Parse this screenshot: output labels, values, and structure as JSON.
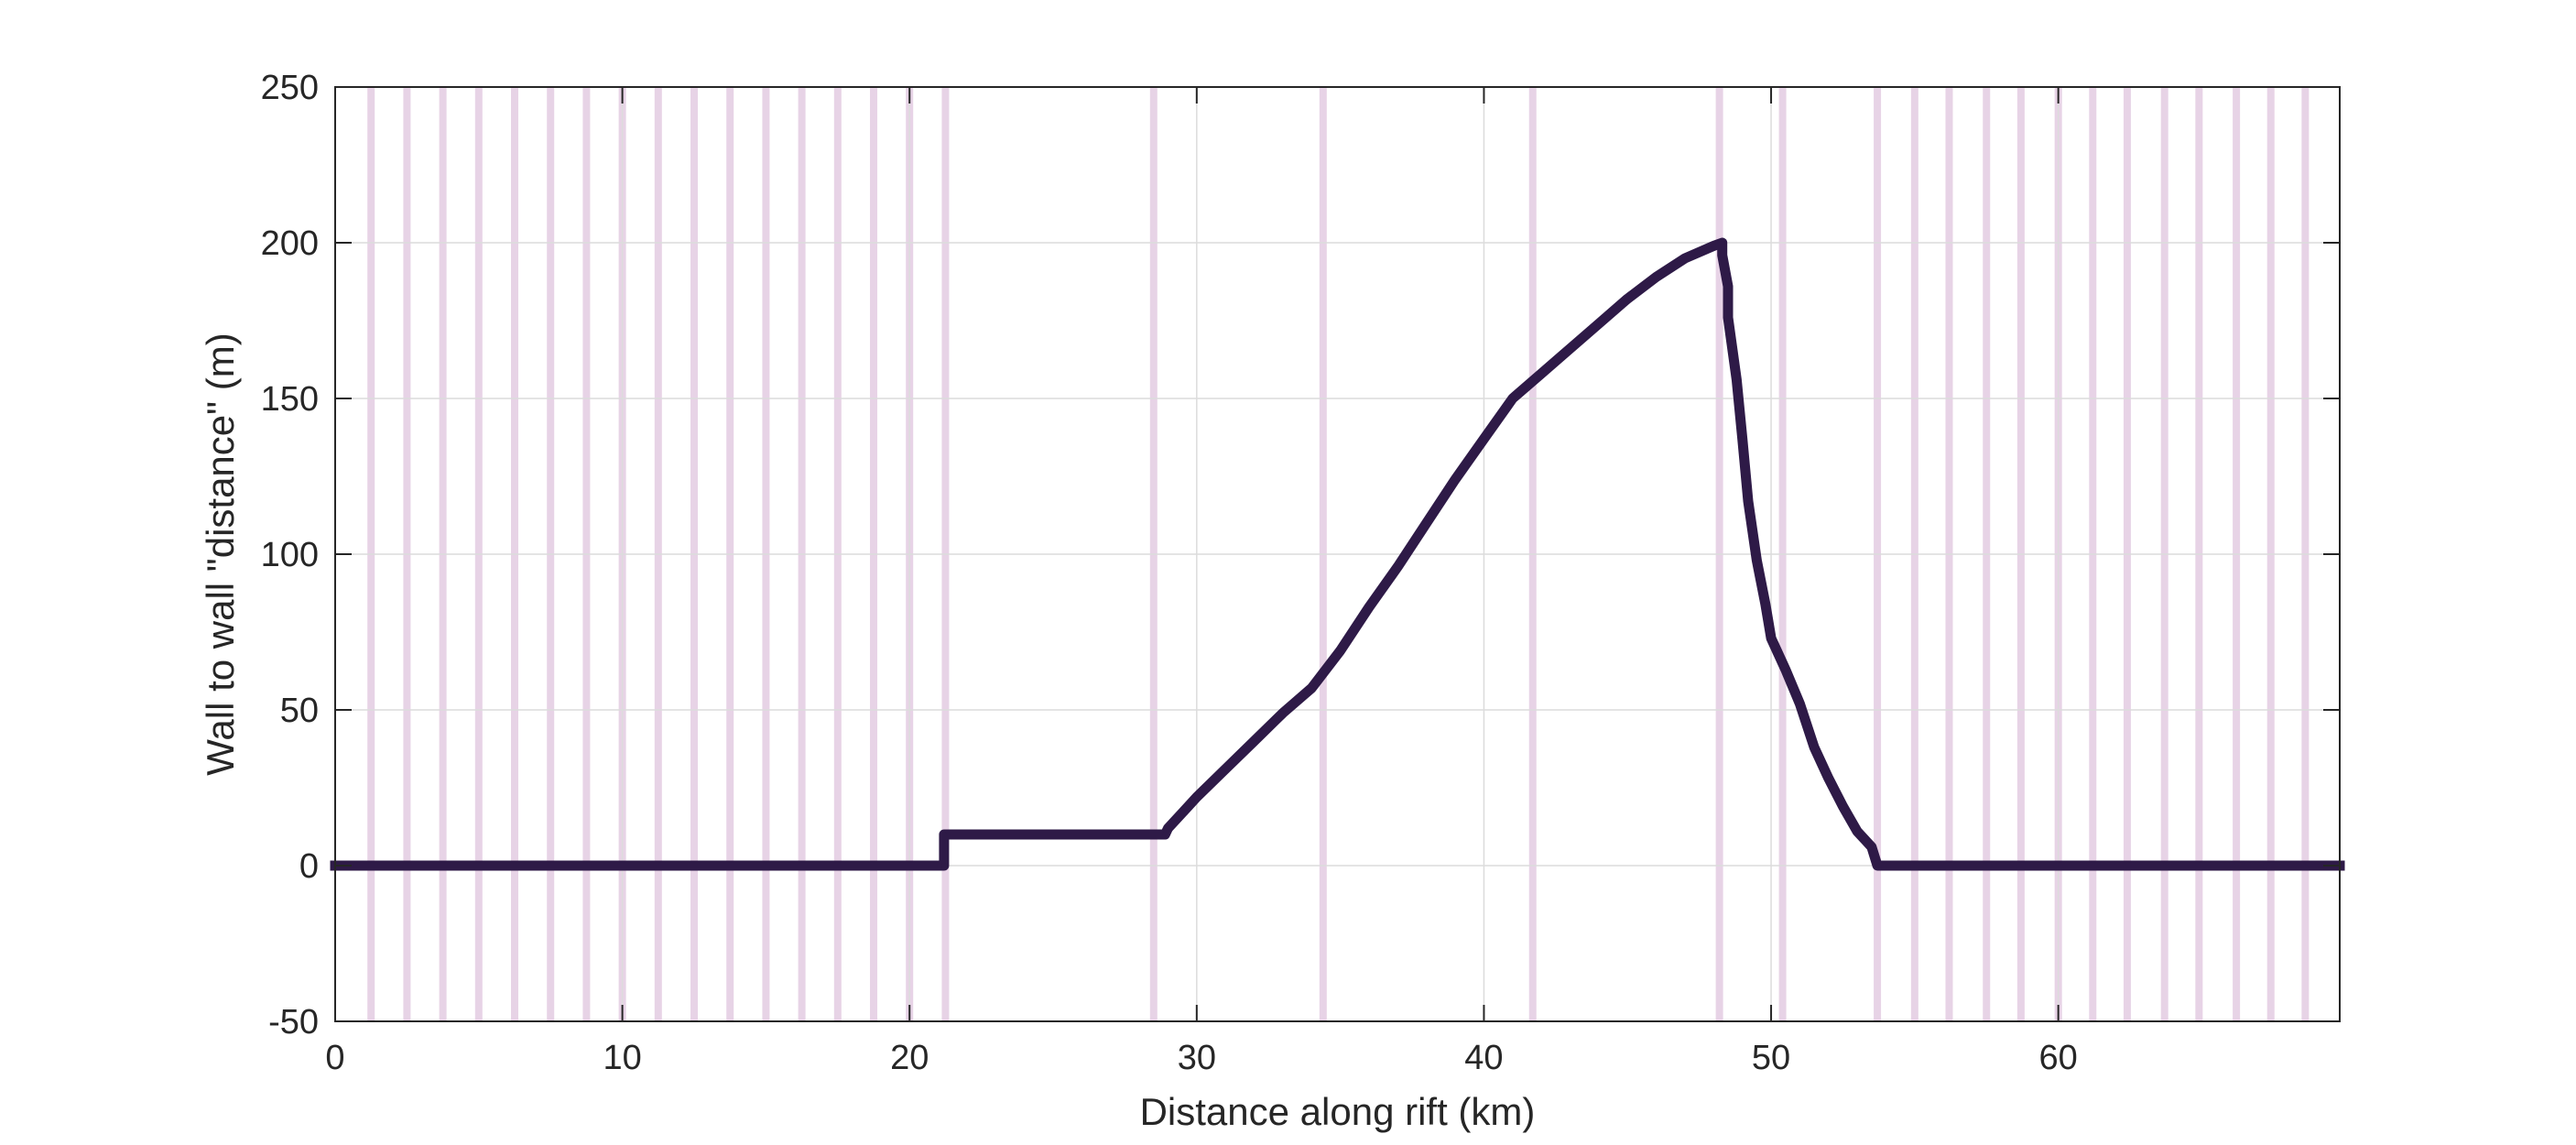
{
  "chart_data": {
    "type": "line",
    "title": "",
    "xlabel": "Distance along rift (km)",
    "ylabel": "Wall to wall \"distance\" (m)",
    "xlim": [
      0,
      69.8
    ],
    "ylim": [
      -50,
      250
    ],
    "xticks": [
      0,
      10,
      20,
      30,
      40,
      50,
      60
    ],
    "yticks": [
      -50,
      0,
      50,
      100,
      150,
      200,
      250
    ],
    "grid": true,
    "legend": "none",
    "colors": {
      "line": "#2e1a47",
      "bands": "#e7d3e6",
      "grid": "#dcdcdc",
      "axes": "#262626"
    },
    "vertical_bands_x": [
      1.25,
      2.5,
      3.75,
      5.0,
      6.25,
      7.5,
      8.75,
      10.0,
      11.25,
      12.5,
      13.75,
      15.0,
      16.25,
      17.5,
      18.75,
      20.0,
      21.25,
      28.5,
      34.4,
      41.7,
      48.2,
      50.4,
      53.7,
      55.0,
      56.2,
      57.5,
      58.7,
      60.0,
      61.2,
      62.4,
      63.7,
      64.9,
      66.2,
      67.4,
      68.6
    ],
    "series": [
      {
        "x": [
          0,
          21.2,
          21.2,
          28.9,
          29.0,
          29.5,
          30.0,
          31.0,
          32.0,
          33.0,
          34.0,
          35.0,
          36.0,
          37.0,
          38.0,
          39.0,
          40.0,
          41.0,
          42.0,
          43.0,
          44.0,
          45.0,
          46.0,
          47.0,
          48.0,
          48.3,
          48.3,
          48.5,
          48.5,
          48.8,
          49.0,
          49.2,
          49.5,
          49.8,
          50.0,
          50.5,
          51.0,
          51.5,
          52.0,
          52.5,
          53.0,
          53.5,
          53.7,
          53.7,
          69.8
        ],
        "y": [
          0,
          0,
          10,
          10,
          12,
          17,
          22,
          31,
          40,
          49,
          57,
          69,
          83,
          96,
          110,
          124,
          137,
          150,
          158,
          166,
          174,
          182,
          189,
          195,
          199,
          200,
          196,
          186,
          176,
          156,
          137,
          117,
          98,
          84,
          73,
          63,
          52,
          38,
          28,
          19,
          11,
          6,
          0,
          0,
          0
        ]
      }
    ]
  }
}
